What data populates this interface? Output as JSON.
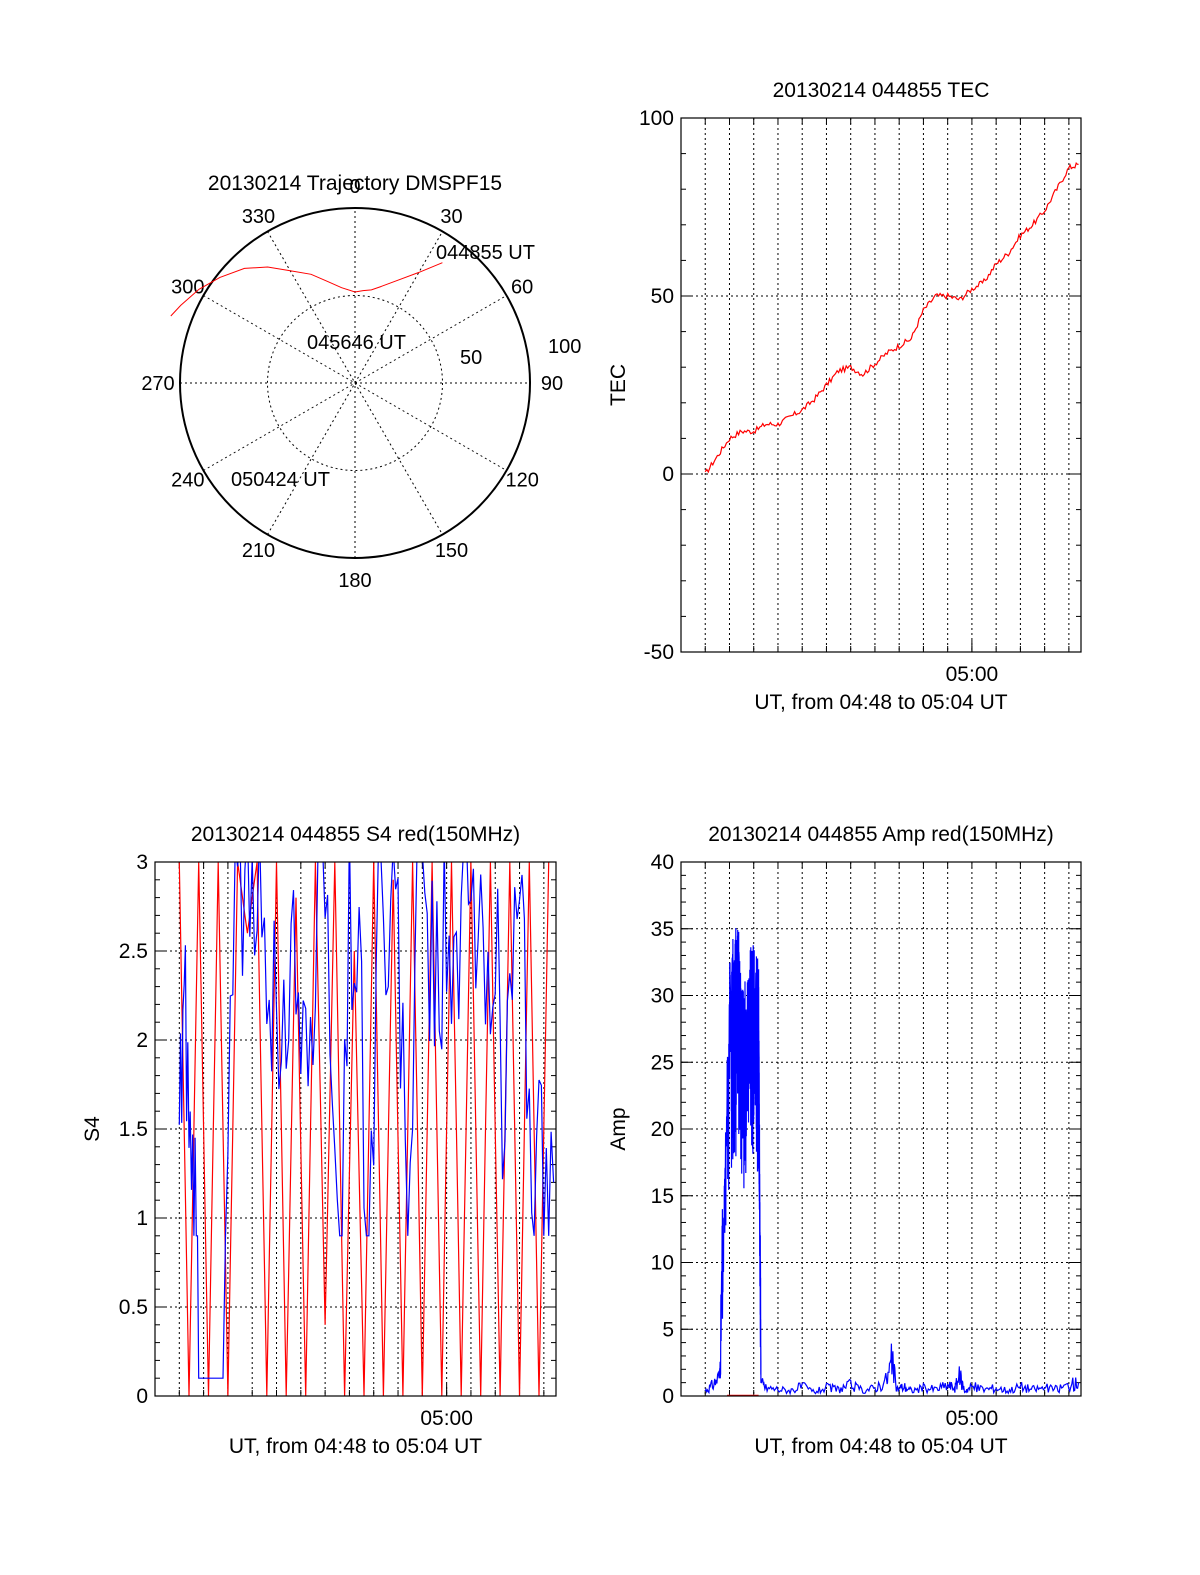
{
  "chart_data": [
    {
      "type": "polar-trajectory",
      "title": "20130214 Trajectory DMSPF15",
      "angle_labels": [
        "0",
        "30",
        "60",
        "90",
        "120",
        "150",
        "180",
        "210",
        "240",
        "270",
        "300",
        "330"
      ],
      "radial_labels": [
        "50",
        "100"
      ],
      "rlim": [
        0,
        100
      ],
      "colors": {
        "track": "#ff0000"
      },
      "trajectory": [
        [
          36,
          85
        ],
        [
          30,
          73
        ],
        [
          22,
          63
        ],
        [
          15,
          57
        ],
        [
          10,
          54
        ],
        [
          5,
          53
        ],
        [
          0,
          52
        ],
        [
          -8,
          55
        ],
        [
          -15,
          60
        ],
        [
          -22,
          67
        ],
        [
          -30,
          74
        ],
        [
          -37,
          83
        ],
        [
          -44,
          91
        ],
        [
          -52,
          98
        ],
        [
          -59,
          104
        ],
        [
          -66,
          109
        ],
        [
          -70,
          112
        ]
      ],
      "annotations": [
        "044855 UT",
        "045646 UT",
        "050424 UT"
      ]
    },
    {
      "type": "line",
      "title": "20130214 044855 TEC",
      "xlabel": "UT, from 04:48 to 05:04 UT",
      "ylabel": "TEC",
      "xlim": [
        288,
        304.5
      ],
      "ylim": [
        -50,
        100
      ],
      "yticks": [
        "-50",
        "0",
        "50",
        "100"
      ],
      "xticks": [
        {
          "value": 300,
          "label": "05:00"
        }
      ],
      "x_minor_step": 1,
      "colors": {
        "series": "#ff0000"
      },
      "series": [
        {
          "x": [
            289,
            289.5,
            290,
            290.5,
            291,
            291.5,
            292,
            292.5,
            293,
            293.5,
            294,
            294.5,
            295,
            295.5,
            296,
            296.5,
            297,
            297.5,
            298,
            298.5,
            299,
            299.5,
            300,
            300.5,
            301,
            301.5,
            302,
            302.5,
            303,
            303.5,
            304,
            304.4
          ],
          "y": [
            0,
            5,
            10,
            12,
            12,
            14,
            14,
            16,
            18,
            21,
            25,
            29,
            30,
            28,
            31,
            34,
            36,
            38,
            46,
            50,
            50,
            49,
            52,
            54,
            59,
            62,
            67,
            70,
            74,
            80,
            86,
            87
          ]
        }
      ]
    },
    {
      "type": "line",
      "title": "20130214 044855 S4 red(150MHz)",
      "xlabel": "UT, from 04:48 to 05:04 UT",
      "ylabel": "S4",
      "xlim": [
        288,
        304.5
      ],
      "ylim": [
        0,
        3
      ],
      "yticks": [
        "0",
        "0.5",
        "1",
        "1.5",
        "2",
        "2.5",
        "3"
      ],
      "xticks": [
        {
          "value": 300,
          "label": "05:00"
        }
      ],
      "x_minor_step": 1,
      "colors": {
        "red": "#ff0000",
        "blue": "#0000ff"
      },
      "series": [
        {
          "name": "red(150MHz)",
          "x": [
            289,
            289.4,
            289.8,
            290.2,
            290.6,
            291,
            291.4,
            291.8,
            292.2,
            292.6,
            293,
            293.4,
            293.8,
            294.2,
            294.6,
            295,
            295.4,
            295.8,
            296.2,
            296.6,
            297,
            297.4,
            297.8,
            298.2,
            298.6,
            299,
            299.4,
            299.8,
            300.2,
            300.6,
            301,
            301.4,
            301.8,
            302.2,
            302.6,
            303,
            303.4,
            303.8,
            304.2
          ],
          "y": [
            3,
            0,
            3,
            0,
            3,
            0,
            3,
            2.6,
            3,
            0,
            3,
            0,
            2.8,
            0,
            3,
            0.4,
            3,
            0,
            2.5,
            0,
            3,
            0,
            2.9,
            0,
            3,
            0,
            3,
            0,
            3,
            0,
            3,
            0,
            3,
            0,
            3,
            0,
            3,
            0,
            3
          ]
        },
        {
          "name": "blue",
          "x": [
            289,
            289.2,
            289.4,
            289.6,
            289.8,
            290,
            290.4,
            290.8,
            291.2,
            291.6,
            292,
            292.4,
            292.8,
            293.2,
            293.6,
            294,
            294.4,
            294.8,
            295.2,
            295.6,
            296,
            296.4,
            296.8,
            297.2,
            297.6,
            298,
            298.4,
            298.8,
            299.2,
            299.6,
            300,
            300.4,
            300.8,
            301.2,
            301.6,
            302,
            302.4,
            302.8,
            303.2,
            303.6,
            304,
            304.4
          ],
          "y": [
            1.4,
            2.2,
            1.8,
            1.2,
            0.1,
            0.1,
            0.1,
            0.1,
            2.5,
            2.9,
            2.6,
            2.8,
            2.4,
            1.6,
            2.9,
            2.2,
            1.9,
            2.7,
            2.3,
            0.4,
            2.8,
            2.5,
            0.6,
            2.9,
            2.4,
            2.7,
            0.7,
            2.9,
            2.6,
            2.2,
            2.8,
            2.1,
            2.9,
            2.5,
            2.3,
            2.7,
            1.5,
            2.9,
            2.3,
            1.1,
            1.3,
            1.2
          ]
        }
      ]
    },
    {
      "type": "line",
      "title": "20130214 044855 Amp red(150MHz)",
      "xlabel": "UT, from 04:48 to 05:04 UT",
      "ylabel": "Amp",
      "xlim": [
        288,
        304.5
      ],
      "ylim": [
        0,
        40
      ],
      "yticks": [
        "0",
        "5",
        "10",
        "15",
        "20",
        "25",
        "30",
        "35",
        "40"
      ],
      "xticks": [
        {
          "value": 300,
          "label": "05:00"
        }
      ],
      "x_minor_step": 1,
      "colors": {
        "red": "#ff0000",
        "blue": "#0000ff"
      },
      "series": [
        {
          "name": "blue",
          "x": [
            289,
            289.3,
            289.6,
            290.0,
            290.3,
            290.6,
            290.9,
            291.2,
            291.3,
            291.5,
            292,
            292.5,
            293,
            293.5,
            294,
            294.5,
            295,
            295.5,
            296,
            296.5,
            296.7,
            296.9,
            297.2,
            297.5,
            298,
            298.5,
            299,
            299.3,
            299.5,
            299.7,
            300,
            300.5,
            301,
            301.5,
            302,
            302.5,
            303,
            303.5,
            304,
            304.4
          ],
          "y": [
            0.4,
            0.8,
            1.5,
            30,
            33,
            28,
            31,
            30,
            1,
            0.6,
            0.5,
            0.4,
            0.7,
            0.3,
            0.6,
            0.5,
            0.8,
            0.4,
            0.6,
            1.2,
            2.6,
            0.5,
            0.7,
            0.4,
            0.6,
            0.5,
            0.8,
            0.6,
            1.5,
            0.4,
            0.7,
            0.5,
            0.6,
            0.4,
            0.7,
            0.5,
            0.6,
            0.5,
            0.8,
            1.0
          ]
        },
        {
          "name": "red(150MHz)",
          "x": [
            289.9,
            290.5,
            291.0,
            291.2
          ],
          "y": [
            0.05,
            0.05,
            0.05,
            0.05
          ]
        }
      ]
    }
  ]
}
